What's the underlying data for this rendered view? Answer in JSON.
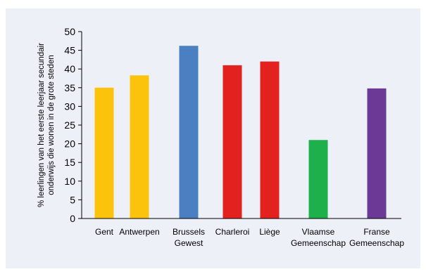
{
  "chart_data": {
    "type": "bar",
    "categories": [
      [
        "Gent"
      ],
      [
        "Antwerpen"
      ],
      [
        "Brussels",
        "Gewest"
      ],
      [
        "Charleroi"
      ],
      [
        "Liège"
      ],
      [
        "Vlaamse",
        "Gemeenschap"
      ],
      [
        "Franse",
        "Gemeenschap"
      ]
    ],
    "values": [
      35,
      38.3,
      46.2,
      41,
      42,
      21,
      34.8
    ],
    "colors": [
      "#fcc30c",
      "#fcc30c",
      "#4a7fc1",
      "#e3211f",
      "#e3211f",
      "#1db04b",
      "#6c3a96"
    ],
    "title": "",
    "xlabel": "",
    "ylabel": [
      "% leerlingen van het eerste leerjaar secundair",
      "onderwijs die wonen in de grote steden"
    ],
    "ylim": [
      0,
      50
    ],
    "yticks": [
      0,
      5,
      10,
      15,
      20,
      25,
      30,
      35,
      40,
      45,
      50
    ],
    "grid": false,
    "legend": "none"
  }
}
